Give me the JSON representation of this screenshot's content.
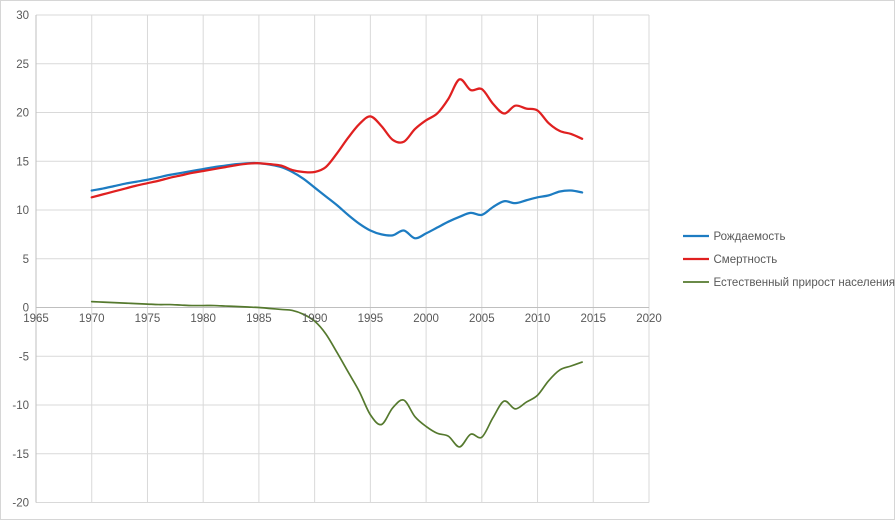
{
  "styles": {
    "background": "#ffffff",
    "border_color": "#d6d6d6",
    "grid_color": "#d9d9d9",
    "axis_color": "#bfbfbf",
    "tick_label_color": "#595959",
    "legend_label_color": "#595959"
  },
  "chart_data": {
    "type": "line",
    "smooth": true,
    "grid": true,
    "legend_position": "right",
    "xlim": [
      1965,
      2020
    ],
    "ylim": [
      -20,
      30
    ],
    "x_ticks": [
      1965,
      1970,
      1975,
      1980,
      1985,
      1990,
      1995,
      2000,
      2005,
      2010,
      2015,
      2020
    ],
    "y_ticks": [
      30,
      25,
      20,
      15,
      10,
      5,
      0,
      -5,
      -10,
      -15,
      -20
    ],
    "x": [
      1970,
      1971,
      1972,
      1973,
      1974,
      1975,
      1976,
      1977,
      1978,
      1979,
      1980,
      1981,
      1982,
      1983,
      1984,
      1985,
      1986,
      1987,
      1988,
      1989,
      1990,
      1991,
      1992,
      1993,
      1994,
      1995,
      1996,
      1997,
      1998,
      1999,
      2000,
      2001,
      2002,
      2003,
      2004,
      2005,
      2006,
      2007,
      2008,
      2009,
      2010,
      2011,
      2012,
      2013,
      2014
    ],
    "series": [
      {
        "key": "birth-rate",
        "name": "Рождаемость",
        "color": "#1d7cc2",
        "line_width": 2.25,
        "values": [
          12.0,
          12.2,
          12.45,
          12.7,
          12.9,
          13.1,
          13.35,
          13.6,
          13.8,
          14.0,
          14.2,
          14.4,
          14.55,
          14.7,
          14.8,
          14.8,
          14.65,
          14.4,
          13.9,
          13.2,
          12.3,
          11.4,
          10.5,
          9.5,
          8.6,
          7.9,
          7.5,
          7.4,
          7.9,
          7.1,
          7.6,
          8.2,
          8.8,
          9.3,
          9.7,
          9.5,
          10.3,
          10.9,
          10.7,
          11.0,
          11.3,
          11.5,
          11.9,
          12.0,
          11.8
        ]
      },
      {
        "key": "death-rate",
        "name": "Смертность",
        "color": "#e02020",
        "line_width": 2.25,
        "values": [
          11.3,
          11.6,
          11.9,
          12.2,
          12.5,
          12.75,
          13.0,
          13.3,
          13.55,
          13.8,
          14.0,
          14.2,
          14.4,
          14.6,
          14.75,
          14.8,
          14.7,
          14.55,
          14.1,
          13.9,
          13.9,
          14.4,
          15.8,
          17.4,
          18.8,
          19.6,
          18.6,
          17.2,
          17.0,
          18.3,
          19.2,
          19.9,
          21.4,
          23.4,
          22.3,
          22.4,
          20.9,
          19.9,
          20.7,
          20.4,
          20.2,
          18.9,
          18.1,
          17.8,
          17.3
        ]
      },
      {
        "key": "natural-increase",
        "name": "Естественный прирост населения",
        "color": "#55792e",
        "line_width": 1.7,
        "values": [
          0.6,
          0.55,
          0.5,
          0.45,
          0.4,
          0.35,
          0.3,
          0.3,
          0.25,
          0.2,
          0.2,
          0.2,
          0.15,
          0.1,
          0.05,
          0.0,
          -0.1,
          -0.2,
          -0.3,
          -0.7,
          -1.4,
          -2.7,
          -4.6,
          -6.6,
          -8.6,
          -11.0,
          -12.0,
          -10.3,
          -9.5,
          -11.2,
          -12.2,
          -12.9,
          -13.2,
          -14.3,
          -13.0,
          -13.3,
          -11.3,
          -9.6,
          -10.4,
          -9.7,
          -9.0,
          -7.5,
          -6.4,
          -6.0,
          -5.6
        ]
      }
    ]
  }
}
